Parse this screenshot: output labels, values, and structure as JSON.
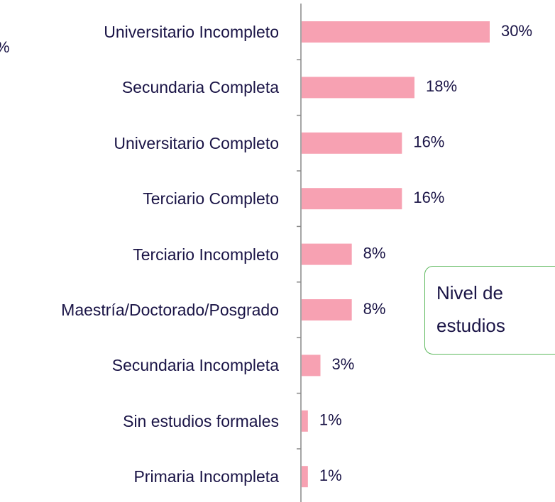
{
  "chart_data": {
    "type": "bar",
    "orientation": "horizontal",
    "categories": [
      "Universitario Incompleto",
      "Secundaria Completa",
      "Universitario Completo",
      "Terciario Completo",
      "Terciario Incompleto",
      "Maestría/Doctorado/Posgrado",
      "Secundaria Incompleta",
      "Sin estudios formales",
      "Primaria Incompleta"
    ],
    "values": [
      30,
      18,
      16,
      16,
      8,
      8,
      3,
      1,
      1
    ],
    "value_labels": [
      "30%",
      "18%",
      "16%",
      "16%",
      "8%",
      "8%",
      "3%",
      "1%",
      "1%"
    ],
    "color": "#f7a1b2",
    "xlim": [
      0,
      30
    ],
    "annotations": [
      "%",
      "Nivel de",
      "estudios"
    ]
  }
}
